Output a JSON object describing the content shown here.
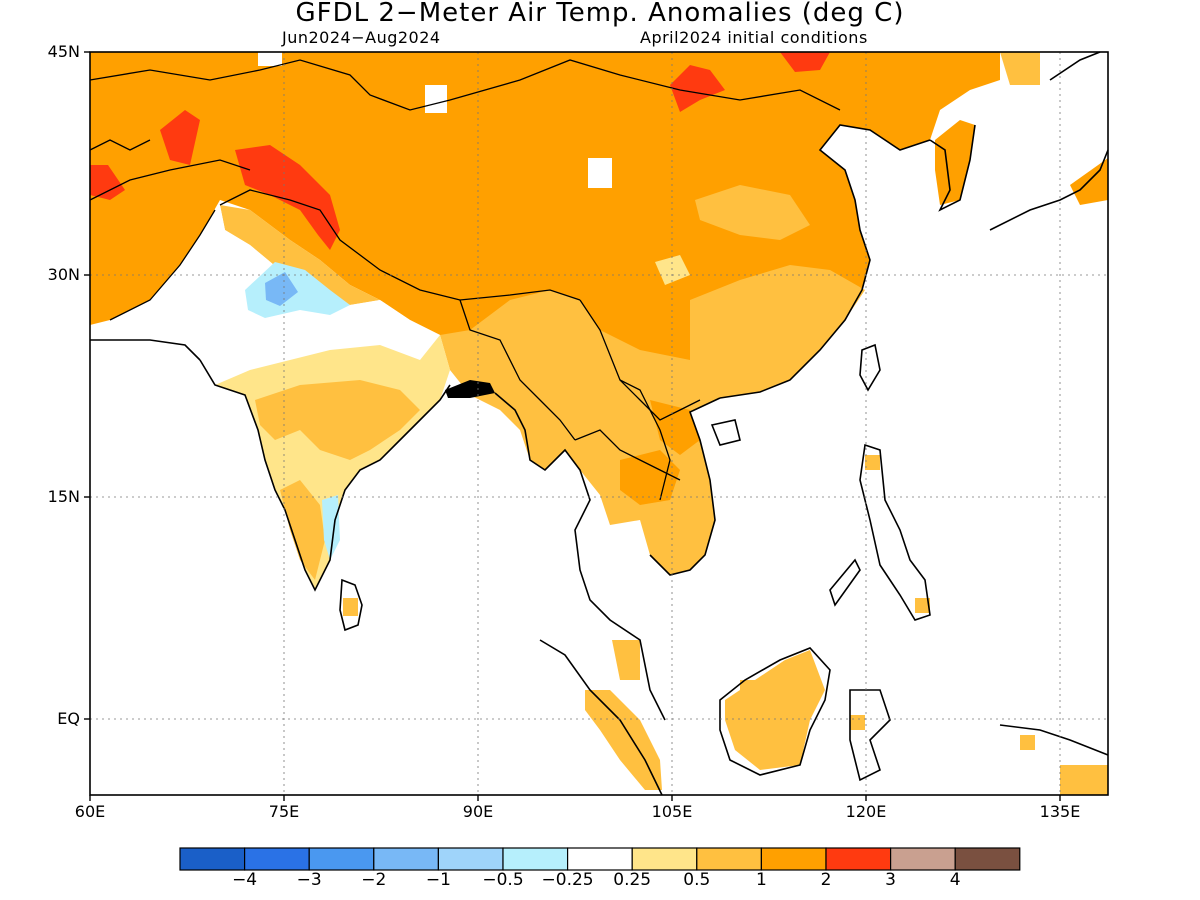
{
  "title": "GFDL 2−Meter Air Temp. Anomalies (deg C)",
  "period": "Jun2024−Aug2024",
  "init": "April2024 initial conditions",
  "y_ticks": [
    "45N",
    "30N",
    "15N",
    "EQ"
  ],
  "x_ticks": [
    "60E",
    "75E",
    "90E",
    "105E",
    "120E",
    "135E"
  ],
  "colorbar": {
    "colors": [
      "#1a5fc8",
      "#2a72e6",
      "#4a98f0",
      "#78b8f6",
      "#9fd4fa",
      "#b6effc",
      "#ffffff",
      "#ffe58a",
      "#ffc040",
      "#ffa000",
      "#ff3a10",
      "#c9a090",
      "#7a5040"
    ],
    "labels": [
      "−4",
      "−3",
      "−2",
      "−1",
      "−0.5",
      "−0.25",
      "0.25",
      "0.5",
      "1",
      "2",
      "3",
      "4"
    ]
  },
  "colors": {
    "land_warm": "#ffa000",
    "light_orange": "#ffc040",
    "yellow": "#ffe58a",
    "red": "#ff3a10",
    "cool1": "#9fd4fa",
    "cool2": "#b6effc",
    "cool3": "#78b8f6",
    "coast": "#000000"
  }
}
